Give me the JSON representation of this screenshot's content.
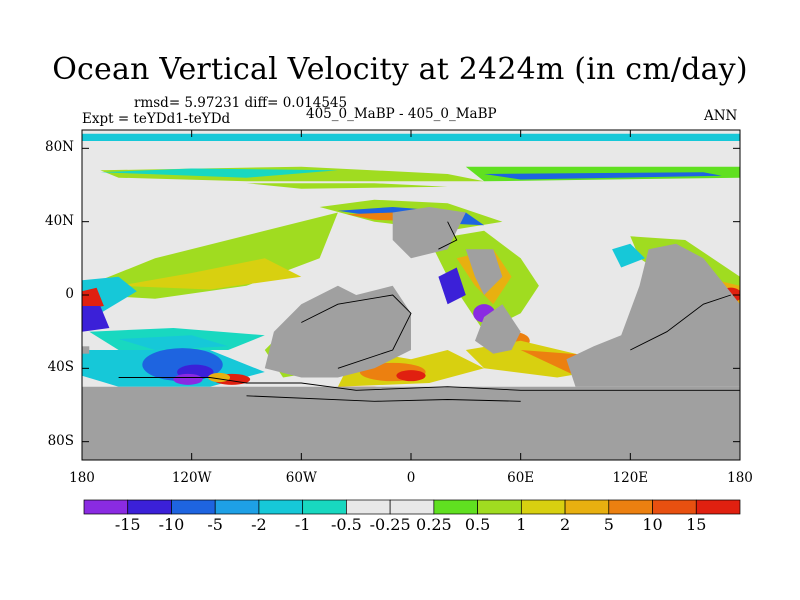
{
  "title": "Ocean Vertical Velocity at 2424m (in cm/day)",
  "stats_line": "rmsd= 5.97231 diff= 0.014545",
  "expt_line": "Expt = teYDd1-teYDd",
  "center_subtitle": "405_0_MaBP - 405_0_MaBP",
  "right_subtitle": "ANN",
  "colors": {
    "land": "#a0a0a0",
    "near_zero": "#e8e8e8",
    "levels": [
      "#8a2be2",
      "#3b20d8",
      "#1e64e0",
      "#1ea0e6",
      "#16c8d8",
      "#18d8c0",
      "#e8e8e8",
      "#60e020",
      "#a0dc20",
      "#d8d010",
      "#e8b010",
      "#ec8010",
      "#e85010",
      "#e02010"
    ]
  },
  "chart_data": {
    "type": "heatmap",
    "title": "Ocean Vertical Velocity at 2424m (in cm/day)",
    "variable": "Ocean Vertical Velocity",
    "depth": "2424m",
    "units": "cm/day",
    "x_ticks": [
      "180",
      "120W",
      "60W",
      "0",
      "60E",
      "120E",
      "180"
    ],
    "x_tick_values": [
      -180,
      -120,
      -60,
      0,
      60,
      120,
      180
    ],
    "y_ticks": [
      "80N",
      "40N",
      "0",
      "40S",
      "80S"
    ],
    "y_tick_values": [
      80,
      40,
      0,
      -40,
      -80
    ],
    "xlim": [
      -180,
      180
    ],
    "ylim": [
      -90,
      90
    ],
    "colorbar_labels": [
      "-15",
      "-10",
      "-5",
      "-2",
      "-1",
      "-0.5",
      "-0.25",
      "0.25",
      "0.5",
      "1",
      "2",
      "5",
      "10",
      "15"
    ],
    "colorbar_levels": [
      -15,
      -10,
      -5,
      -2,
      -1,
      -0.5,
      -0.25,
      0.25,
      0.5,
      1,
      2,
      5,
      10,
      15
    ],
    "rmsd": 5.97231,
    "diff": 0.014545,
    "case": "405_0_MaBP - 405_0_MaBP",
    "period": "ANN"
  }
}
